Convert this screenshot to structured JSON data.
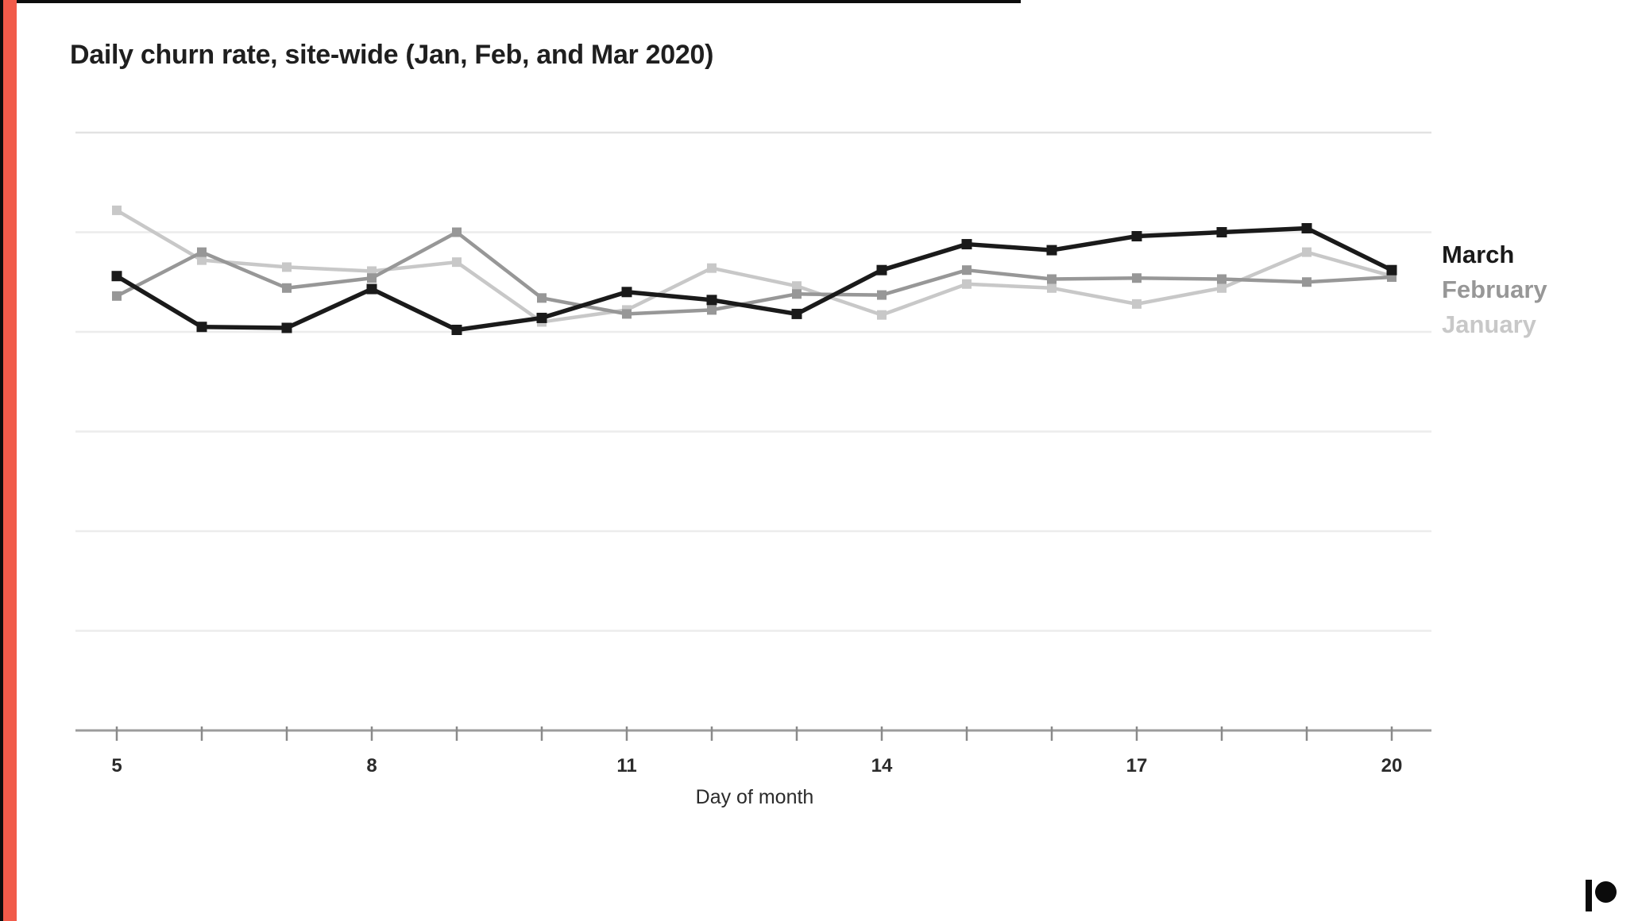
{
  "header": {
    "title": "Daily churn rate, site-wide (Jan, Feb, and Mar 2020)"
  },
  "chart_data": {
    "type": "line",
    "title": "Daily churn rate, site-wide (Jan, Feb, and Mar 2020)",
    "xlabel": "Day of month",
    "ylabel": "",
    "x": [
      5,
      6,
      7,
      8,
      9,
      10,
      11,
      12,
      13,
      14,
      15,
      16,
      17,
      18,
      19,
      20
    ],
    "x_tick_labels": [
      "5",
      "8",
      "11",
      "14",
      "17",
      "20"
    ],
    "y_axis_labeled": false,
    "y_units": "relative churn rate (y-axis shown without numeric labels; values in gridline units above baseline)",
    "ylim": [
      0,
      6.6
    ],
    "gridline_values": [
      1,
      2,
      3,
      4,
      5,
      6
    ],
    "grid": true,
    "marker": "square",
    "legend_position": "right of line ends",
    "series": [
      {
        "name": "March",
        "color": "#1a1a1a",
        "values": [
          4.56,
          4.05,
          4.04,
          4.43,
          4.02,
          4.14,
          4.4,
          4.32,
          4.18,
          4.62,
          4.88,
          4.82,
          4.96,
          5.0,
          5.04,
          4.62
        ]
      },
      {
        "name": "February",
        "color": "#979797",
        "values": [
          4.36,
          4.8,
          4.44,
          4.54,
          5.0,
          4.34,
          4.18,
          4.22,
          4.38,
          4.37,
          4.62,
          4.53,
          4.54,
          4.53,
          4.5,
          4.55
        ]
      },
      {
        "name": "January",
        "color": "#c8c8c8",
        "values": [
          5.22,
          4.72,
          4.65,
          4.61,
          4.7,
          4.1,
          4.22,
          4.64,
          4.46,
          4.17,
          4.48,
          4.44,
          4.28,
          4.44,
          4.8,
          4.56
        ]
      }
    ]
  },
  "branding": {
    "accent_color": "#f15b4a",
    "logo_color": "#0b0b0b"
  }
}
